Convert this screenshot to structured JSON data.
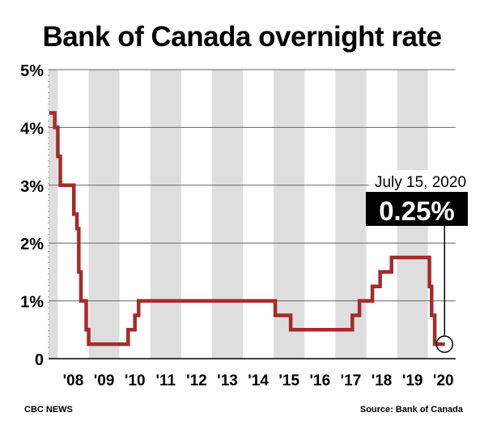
{
  "chart_data": {
    "type": "line",
    "title": "Bank of Canada overnight rate",
    "xlabel": "",
    "ylabel": "",
    "xlim": [
      2007.7,
      2020.9
    ],
    "ylim": [
      0,
      5
    ],
    "y_ticks": [
      0,
      1,
      2,
      3,
      4,
      5
    ],
    "y_tick_labels": [
      "0",
      "1%",
      "2%",
      "3%",
      "4%",
      "5%"
    ],
    "x_ticks": [
      2008,
      2009,
      2010,
      2011,
      2012,
      2013,
      2014,
      2015,
      2016,
      2017,
      2018,
      2019,
      2020
    ],
    "x_tick_labels": [
      "'08",
      "'09",
      "'10",
      "'11",
      "'12",
      "'13",
      "'14",
      "'15",
      "'16",
      "'17",
      "'18",
      "'19",
      "'20"
    ],
    "grid": "horizontal",
    "year_shading": "alternating",
    "series": [
      {
        "color": "#a52a2a",
        "step": true,
        "x": [
          2007.72,
          2007.9,
          2008.0,
          2008.08,
          2008.42,
          2008.52,
          2008.62,
          2008.68,
          2008.75,
          2008.92,
          2009.0,
          2009.35,
          2010.28,
          2010.5,
          2010.62,
          2010.75,
          2014.75,
          2015.05,
          2015.55,
          2017.35,
          2017.55,
          2017.78,
          2018.2,
          2018.45,
          2018.62,
          2018.82,
          2019.9,
          2020.05,
          2020.12,
          2020.16,
          2020.22,
          2020.55
        ],
        "y": [
          4.25,
          4.0,
          3.5,
          3.0,
          3.0,
          2.5,
          2.25,
          1.5,
          1.0,
          0.5,
          0.25,
          0.25,
          0.5,
          0.75,
          1.0,
          1.0,
          1.0,
          0.75,
          0.5,
          0.5,
          0.75,
          1.0,
          1.25,
          1.5,
          1.5,
          1.75,
          1.75,
          1.25,
          0.75,
          0.75,
          0.25,
          0.25
        ]
      }
    ],
    "annotation": {
      "date_label": "July 15, 2020",
      "value_label": "0.25%",
      "x": 2020.54,
      "y": 0.25
    }
  },
  "footer": {
    "credit": "CBC NEWS",
    "source": "Source: Bank of Canada"
  },
  "colors": {
    "line": "#a52a2a",
    "shade": "#dedede",
    "grid": "#666666",
    "callout_bg": "#000000",
    "callout_text": "#ffffff"
  }
}
